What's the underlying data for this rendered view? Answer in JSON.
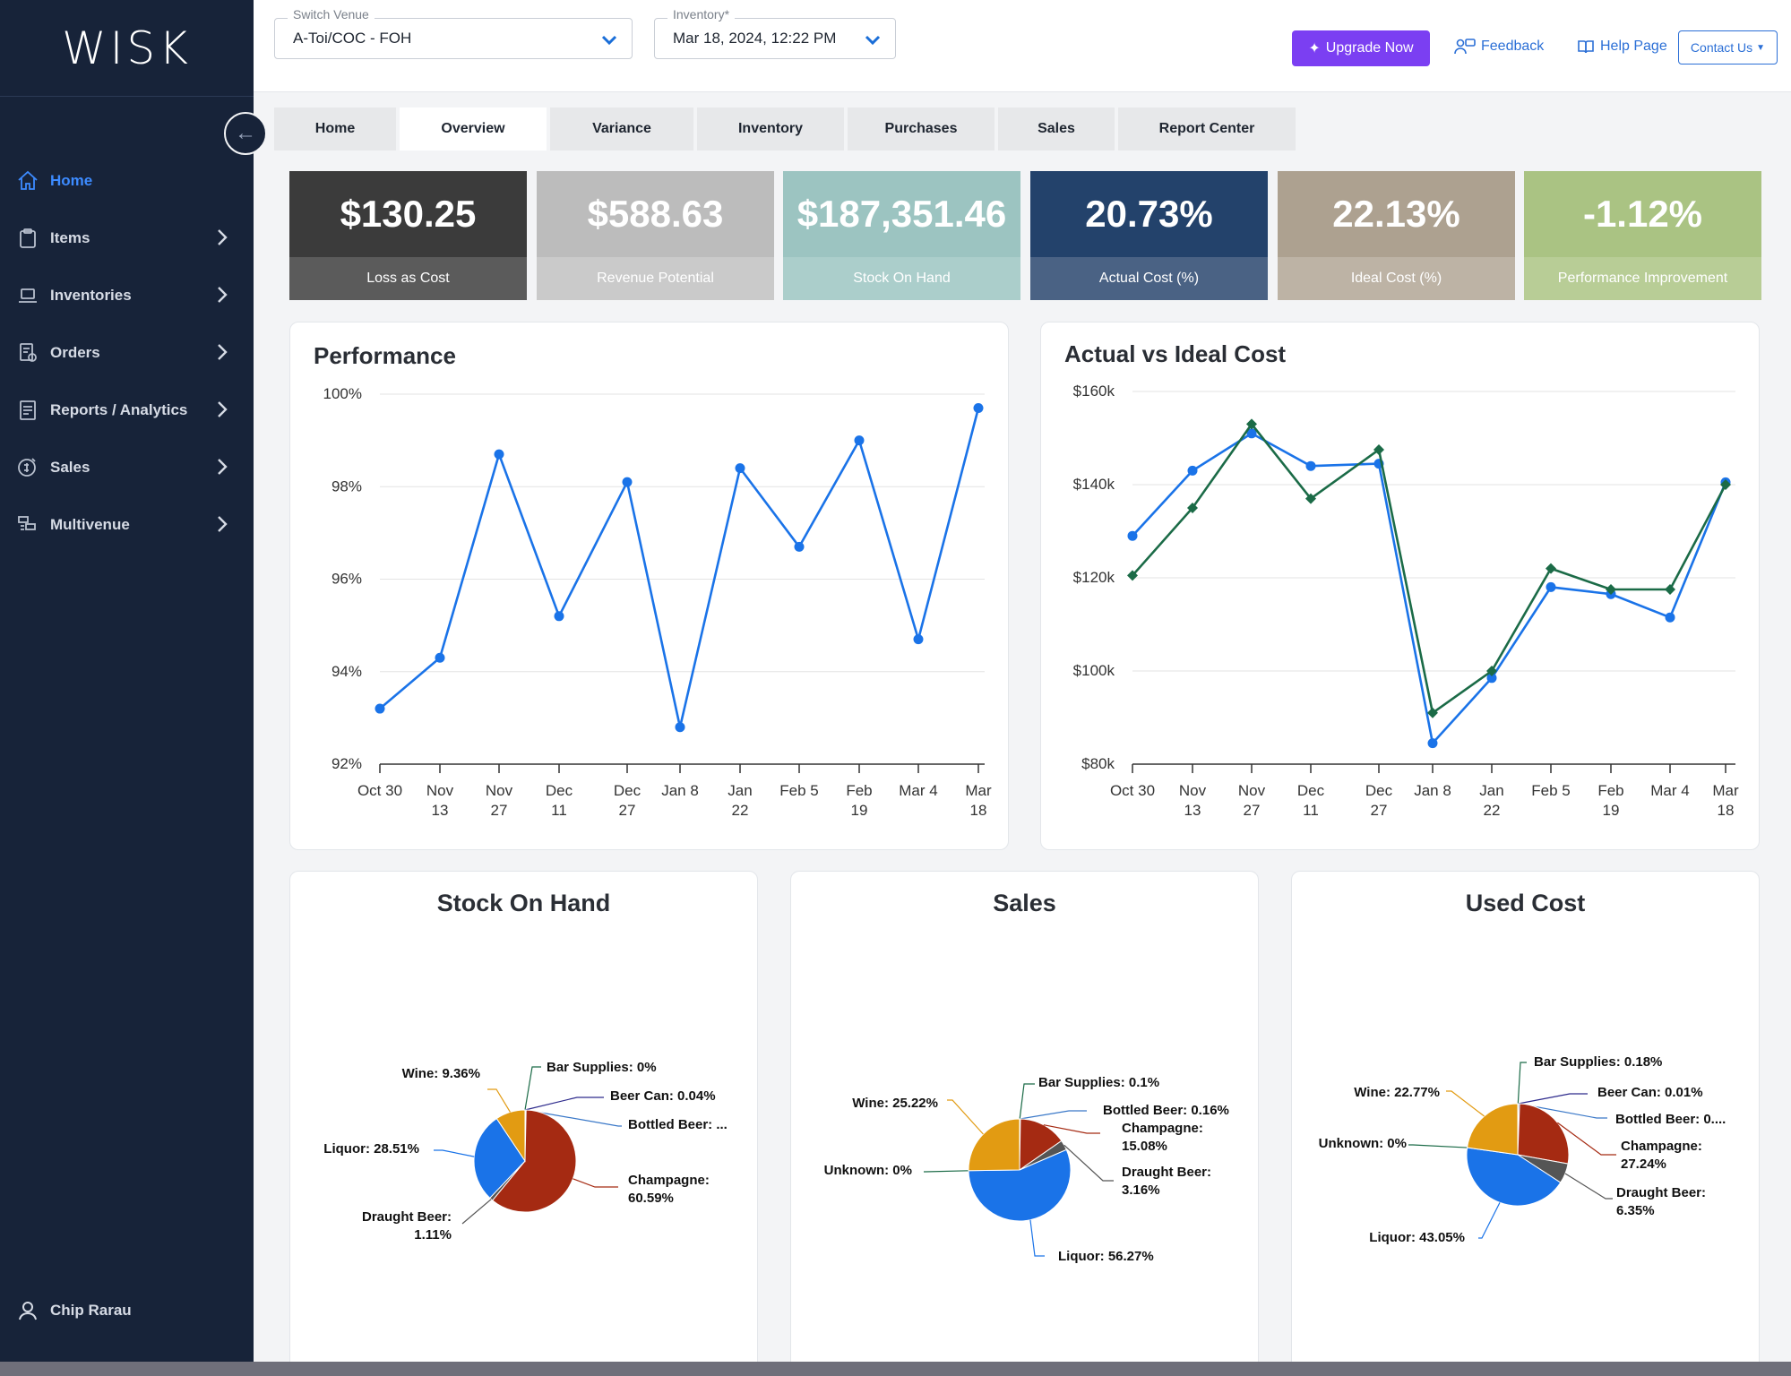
{
  "app": {
    "logo": "WISK"
  },
  "sidebar": {
    "items": [
      {
        "label": "Home",
        "icon": "home-icon",
        "active": true,
        "chevron": false
      },
      {
        "label": "Items",
        "icon": "clipboard-icon",
        "active": false,
        "chevron": true
      },
      {
        "label": "Inventories",
        "icon": "laptop-icon",
        "active": false,
        "chevron": true
      },
      {
        "label": "Orders",
        "icon": "order-icon",
        "active": false,
        "chevron": true
      },
      {
        "label": "Reports / Analytics",
        "icon": "report-icon",
        "active": false,
        "chevron": true
      },
      {
        "label": "Sales",
        "icon": "sales-icon",
        "active": false,
        "chevron": true
      },
      {
        "label": "Multivenue",
        "icon": "multivenue-icon",
        "active": false,
        "chevron": true
      }
    ],
    "user": "Chip Rarau"
  },
  "header": {
    "venue_label": "Switch Venue",
    "venue_value": "A-Toi/COC - FOH",
    "inventory_label": "Inventory*",
    "inventory_value": "Mar 18, 2024, 12:22 PM",
    "upgrade": "Upgrade Now",
    "feedback": "Feedback",
    "help": "Help Page",
    "contact": "Contact Us"
  },
  "tabs": [
    {
      "label": "Home",
      "active": false
    },
    {
      "label": "Overview",
      "active": true
    },
    {
      "label": "Variance",
      "active": false
    },
    {
      "label": "Inventory",
      "active": false
    },
    {
      "label": "Purchases",
      "active": false
    },
    {
      "label": "Sales",
      "active": false
    },
    {
      "label": "Report Center",
      "active": false
    }
  ],
  "kpis": [
    {
      "value": "$130.25",
      "label": "Loss as Cost",
      "top": "#3b3b3b",
      "bottom": "#5b5b5b"
    },
    {
      "value": "$588.63",
      "label": "Revenue Potential",
      "top": "#bcbcbc",
      "bottom": "#cacaca"
    },
    {
      "value": "$187,351.46",
      "label": "Stock On Hand",
      "top": "#9cc4c1",
      "bottom": "#abcecb"
    },
    {
      "value": "20.73%",
      "label": "Actual Cost (%)",
      "top": "#23426b",
      "bottom": "#4a6284"
    },
    {
      "value": "22.13%",
      "label": "Ideal Cost (%)",
      "top": "#ada190",
      "bottom": "#bdb3a5"
    },
    {
      "value": "-1.12%",
      "label": "Performance Improvement",
      "top": "#aac383",
      "bottom": "#b8cd96"
    }
  ],
  "chart_data": [
    {
      "type": "line",
      "title": "Performance",
      "x": [
        "Oct 30",
        "Nov 13",
        "Nov 27",
        "Dec 11",
        "Dec 27",
        "Jan 8",
        "Jan 22",
        "Feb 5",
        "Feb 19",
        "Mar 4",
        "Mar 18"
      ],
      "series": [
        {
          "name": "",
          "color": "#1a73e8",
          "values": [
            93.2,
            94.3,
            98.7,
            95.2,
            98.1,
            92.8,
            98.4,
            96.7,
            99.0,
            94.7,
            99.7
          ]
        }
      ],
      "ylim": [
        92,
        100
      ],
      "yticks": [
        "100%",
        "98%",
        "96%",
        "94%",
        "92%"
      ],
      "grid": true
    },
    {
      "type": "line",
      "title": "Actual vs Ideal Cost",
      "x": [
        "Oct 30",
        "Nov 13",
        "Nov 27",
        "Dec 11",
        "Dec 27",
        "Jan 8",
        "Jan 22",
        "Feb 5",
        "Feb 19",
        "Mar 4",
        "Mar 18"
      ],
      "series": [
        {
          "name": "",
          "color": "#1a73e8",
          "marker": "circle",
          "values": [
            129,
            143,
            151,
            144,
            144.5,
            84.5,
            98.5,
            118,
            116.5,
            111.5,
            140.5
          ]
        },
        {
          "name": "",
          "color": "#1b6b47",
          "marker": "diamond",
          "values": [
            120.5,
            135,
            153,
            137,
            147.5,
            91,
            100,
            122,
            117.5,
            117.5,
            140
          ]
        }
      ],
      "ylim": [
        80,
        160
      ],
      "yticks": [
        "$160k",
        "$140k",
        "$120k",
        "$100k",
        "$80k"
      ],
      "grid": true
    },
    {
      "type": "pie",
      "title": "Stock On Hand",
      "slices": [
        {
          "label": "Bar Supplies: 0%",
          "value": 0.0,
          "color": "#1b6b47"
        },
        {
          "label": "Beer Can: 0.04%",
          "value": 0.04,
          "color": "#2d2a8c"
        },
        {
          "label": "Bottled Beer: ...",
          "value": 0.3,
          "color": "#3a78c8"
        },
        {
          "label": "Champagne: 60.59%",
          "value": 60.59,
          "color": "#a52a12"
        },
        {
          "label": "Draught Beer: 1.11%",
          "value": 1.11,
          "color": "#555555"
        },
        {
          "label": "Liquor: 28.51%",
          "value": 28.51,
          "color": "#1a73e8"
        },
        {
          "label": "Wine: 9.36%",
          "value": 9.36,
          "color": "#e29b12"
        }
      ]
    },
    {
      "type": "pie",
      "title": "Sales",
      "slices": [
        {
          "label": "Bar Supplies: 0.1%",
          "value": 0.1,
          "color": "#1b6b47"
        },
        {
          "label": "Bottled Beer: 0.16%",
          "value": 0.16,
          "color": "#3a78c8"
        },
        {
          "label": "Champagne: 15.08%",
          "value": 15.08,
          "color": "#a52a12"
        },
        {
          "label": "Draught Beer: 3.16%",
          "value": 3.16,
          "color": "#555555"
        },
        {
          "label": "Liquor: 56.27%",
          "value": 56.27,
          "color": "#1a73e8"
        },
        {
          "label": "Unknown: 0%",
          "value": 0.0,
          "color": "#1b6b47"
        },
        {
          "label": "Wine: 25.22%",
          "value": 25.22,
          "color": "#e29b12"
        }
      ]
    },
    {
      "type": "pie",
      "title": "Used Cost",
      "slices": [
        {
          "label": "Bar Supplies: 0.18%",
          "value": 0.18,
          "color": "#1b6b47"
        },
        {
          "label": "Beer Can: 0.01%",
          "value": 0.01,
          "color": "#2d2a8c"
        },
        {
          "label": "Bottled Beer: 0....",
          "value": 0.4,
          "color": "#3a78c8"
        },
        {
          "label": "Champagne: 27.24%",
          "value": 27.24,
          "color": "#a52a12"
        },
        {
          "label": "Draught Beer: 6.35%",
          "value": 6.35,
          "color": "#555555"
        },
        {
          "label": "Liquor: 43.05%",
          "value": 43.05,
          "color": "#1a73e8"
        },
        {
          "label": "Unknown: 0%",
          "value": 0.0,
          "color": "#1b6b47"
        },
        {
          "label": "Wine: 22.77%",
          "value": 22.77,
          "color": "#e29b12"
        }
      ]
    }
  ]
}
